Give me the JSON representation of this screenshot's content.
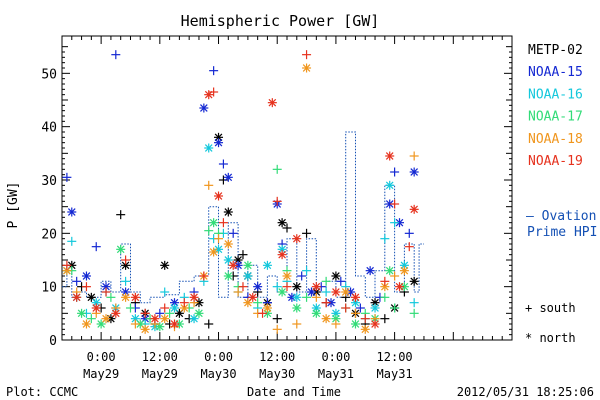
{
  "chart_data": {
    "type": "scatter",
    "title": "Hemispheric Power [GW]",
    "ylabel": "P [GW]",
    "xlabel": "Date and Time",
    "ylim": [
      0,
      57
    ],
    "xlim_hours": [
      -8,
      84
    ],
    "y_ticks": [
      0,
      10,
      20,
      30,
      40,
      50
    ],
    "x_ticks": [
      {
        "hour": 0,
        "line1": "0:00",
        "line2": "May29"
      },
      {
        "hour": 12,
        "line1": "12:00",
        "line2": "May29"
      },
      {
        "hour": 24,
        "line1": "0:00",
        "line2": "May30"
      },
      {
        "hour": 36,
        "line1": "12:00",
        "line2": "May30"
      },
      {
        "hour": 48,
        "line1": "0:00",
        "line2": "May31"
      },
      {
        "hour": 60,
        "line1": "12:00",
        "line2": "May31"
      }
    ],
    "series": [
      {
        "name": "METP-02",
        "color": "#000000",
        "points": [
          [
            -6,
            14
          ],
          [
            -4,
            10
          ],
          [
            -2,
            8
          ],
          [
            0,
            6
          ],
          [
            2,
            4
          ],
          [
            4,
            23.5
          ],
          [
            5,
            14
          ],
          [
            7,
            7
          ],
          [
            9,
            5
          ],
          [
            11,
            3
          ],
          [
            13,
            14
          ],
          [
            14,
            3
          ],
          [
            16,
            5
          ],
          [
            18,
            4
          ],
          [
            20,
            7
          ],
          [
            22,
            3
          ],
          [
            24,
            38
          ],
          [
            25,
            30
          ],
          [
            26,
            24
          ],
          [
            27,
            12
          ],
          [
            28,
            15
          ],
          [
            29,
            16
          ],
          [
            30,
            12
          ],
          [
            32,
            9
          ],
          [
            34,
            7
          ],
          [
            36,
            4
          ],
          [
            37,
            22
          ],
          [
            38,
            21
          ],
          [
            40,
            10
          ],
          [
            42,
            20
          ],
          [
            44,
            9
          ],
          [
            46,
            7
          ],
          [
            48,
            12
          ],
          [
            50,
            8
          ],
          [
            52,
            5
          ],
          [
            54,
            3
          ],
          [
            56,
            7
          ],
          [
            58,
            4
          ],
          [
            60,
            6
          ],
          [
            62,
            9
          ],
          [
            64,
            11
          ]
        ]
      },
      {
        "name": "NOAA-15",
        "color": "#1428d2",
        "points": [
          [
            -7,
            30.5
          ],
          [
            -6,
            24
          ],
          [
            -5,
            11
          ],
          [
            -3,
            12
          ],
          [
            -1,
            17.5
          ],
          [
            1,
            10
          ],
          [
            3,
            53.5
          ],
          [
            5,
            9
          ],
          [
            7,
            6
          ],
          [
            9,
            4
          ],
          [
            12,
            5
          ],
          [
            15,
            7
          ],
          [
            19,
            9
          ],
          [
            21,
            43.5
          ],
          [
            23,
            50.5
          ],
          [
            24,
            37
          ],
          [
            25,
            33
          ],
          [
            26,
            30.5
          ],
          [
            27,
            20
          ],
          [
            28,
            14
          ],
          [
            30,
            8
          ],
          [
            32,
            10
          ],
          [
            34,
            7
          ],
          [
            36,
            25.5
          ],
          [
            37,
            18
          ],
          [
            39,
            8
          ],
          [
            41,
            12
          ],
          [
            43,
            9
          ],
          [
            45,
            10
          ],
          [
            47,
            7
          ],
          [
            49,
            11
          ],
          [
            51,
            9
          ],
          [
            53,
            6
          ],
          [
            55,
            13
          ],
          [
            57,
            8
          ],
          [
            59,
            25.5
          ],
          [
            60,
            31.5
          ],
          [
            61,
            22
          ],
          [
            63,
            20
          ],
          [
            64,
            31.5
          ]
        ]
      },
      {
        "name": "NOAA-16",
        "color": "#14c8dc",
        "points": [
          [
            -7,
            13
          ],
          [
            -6,
            18.5
          ],
          [
            -5,
            8
          ],
          [
            -3,
            5
          ],
          [
            -1,
            7
          ],
          [
            1,
            9
          ],
          [
            3,
            6
          ],
          [
            5,
            11
          ],
          [
            7,
            4
          ],
          [
            9,
            3
          ],
          [
            11,
            2.5
          ],
          [
            13,
            9
          ],
          [
            15,
            6
          ],
          [
            17,
            8
          ],
          [
            19,
            4
          ],
          [
            21,
            11
          ],
          [
            22,
            36
          ],
          [
            23,
            19
          ],
          [
            24,
            17
          ],
          [
            25,
            20
          ],
          [
            26,
            15
          ],
          [
            28,
            9
          ],
          [
            30,
            12
          ],
          [
            32,
            6
          ],
          [
            34,
            14
          ],
          [
            36,
            10
          ],
          [
            37,
            17
          ],
          [
            38,
            11
          ],
          [
            40,
            8
          ],
          [
            42,
            13
          ],
          [
            44,
            6
          ],
          [
            46,
            9
          ],
          [
            48,
            5
          ],
          [
            50,
            10
          ],
          [
            52,
            7
          ],
          [
            54,
            4
          ],
          [
            56,
            6
          ],
          [
            58,
            19
          ],
          [
            59,
            29
          ],
          [
            60,
            22
          ],
          [
            62,
            14
          ],
          [
            64,
            7
          ]
        ]
      },
      {
        "name": "NOAA-17",
        "color": "#32dc78",
        "points": [
          [
            -6,
            13
          ],
          [
            -4,
            5
          ],
          [
            -2,
            4
          ],
          [
            0,
            3
          ],
          [
            2,
            8
          ],
          [
            4,
            17
          ],
          [
            6,
            6
          ],
          [
            8,
            3
          ],
          [
            10,
            4
          ],
          [
            12,
            2.5
          ],
          [
            14,
            5
          ],
          [
            16,
            3
          ],
          [
            18,
            6
          ],
          [
            20,
            5
          ],
          [
            22,
            20.5
          ],
          [
            23,
            22
          ],
          [
            24,
            20
          ],
          [
            26,
            12
          ],
          [
            28,
            10
          ],
          [
            30,
            14
          ],
          [
            32,
            7
          ],
          [
            34,
            5
          ],
          [
            36,
            32
          ],
          [
            37,
            9
          ],
          [
            38,
            13
          ],
          [
            40,
            6
          ],
          [
            42,
            8
          ],
          [
            44,
            5
          ],
          [
            46,
            11
          ],
          [
            48,
            4
          ],
          [
            50,
            6
          ],
          [
            52,
            3
          ],
          [
            54,
            5
          ],
          [
            56,
            4
          ],
          [
            58,
            8
          ],
          [
            59,
            13
          ],
          [
            60,
            6
          ],
          [
            62,
            10
          ],
          [
            64,
            5
          ]
        ]
      },
      {
        "name": "NOAA-18",
        "color": "#f0961e",
        "points": [
          [
            -7,
            13
          ],
          [
            -5,
            9
          ],
          [
            -3,
            3
          ],
          [
            -1,
            5
          ],
          [
            1,
            4
          ],
          [
            3,
            6
          ],
          [
            5,
            8
          ],
          [
            7,
            3
          ],
          [
            9,
            2
          ],
          [
            11,
            3
          ],
          [
            13,
            4
          ],
          [
            15,
            2.5
          ],
          [
            17,
            6
          ],
          [
            19,
            7
          ],
          [
            21,
            12
          ],
          [
            22,
            29
          ],
          [
            23,
            16.5
          ],
          [
            24,
            19
          ],
          [
            26,
            18
          ],
          [
            28,
            9
          ],
          [
            30,
            7
          ],
          [
            32,
            5
          ],
          [
            34,
            6
          ],
          [
            36,
            2
          ],
          [
            38,
            12
          ],
          [
            40,
            3
          ],
          [
            42,
            51
          ],
          [
            44,
            8
          ],
          [
            46,
            4
          ],
          [
            48,
            3
          ],
          [
            50,
            9
          ],
          [
            52,
            5
          ],
          [
            54,
            2
          ],
          [
            56,
            4
          ],
          [
            58,
            10
          ],
          [
            60,
            12
          ],
          [
            62,
            13
          ],
          [
            64,
            34.5
          ]
        ]
      },
      {
        "name": "NOAA-19",
        "color": "#e6321e",
        "points": [
          [
            -7,
            14
          ],
          [
            -5,
            8
          ],
          [
            -3,
            10
          ],
          [
            -1,
            6
          ],
          [
            1,
            9
          ],
          [
            3,
            5
          ],
          [
            5,
            15
          ],
          [
            7,
            8
          ],
          [
            9,
            5
          ],
          [
            11,
            4
          ],
          [
            13,
            6
          ],
          [
            15,
            3
          ],
          [
            17,
            7
          ],
          [
            19,
            8
          ],
          [
            21,
            12
          ],
          [
            22,
            46
          ],
          [
            23,
            46.5
          ],
          [
            24,
            27
          ],
          [
            25,
            22
          ],
          [
            27,
            14
          ],
          [
            29,
            10
          ],
          [
            31,
            8
          ],
          [
            33,
            5
          ],
          [
            35,
            44.5
          ],
          [
            36,
            26
          ],
          [
            37,
            16
          ],
          [
            38,
            10
          ],
          [
            40,
            19
          ],
          [
            42,
            53.5
          ],
          [
            44,
            10
          ],
          [
            46,
            7
          ],
          [
            48,
            9
          ],
          [
            50,
            6
          ],
          [
            52,
            8
          ],
          [
            54,
            4
          ],
          [
            56,
            3
          ],
          [
            58,
            11
          ],
          [
            59,
            34.5
          ],
          [
            60,
            25.5
          ],
          [
            61,
            10
          ],
          [
            63,
            17.5
          ],
          [
            64,
            24.5
          ]
        ]
      }
    ],
    "ovation": {
      "label_line1": "– Ovation",
      "label_line2": "Prime HPI",
      "color": "#1450b4",
      "segments": [
        [
          -8,
          10
        ],
        [
          -7,
          14
        ],
        [
          -6,
          8
        ],
        [
          -5,
          9
        ],
        [
          -3,
          8
        ],
        [
          0,
          11
        ],
        [
          2,
          9
        ],
        [
          4,
          18
        ],
        [
          6,
          9
        ],
        [
          8,
          7
        ],
        [
          10,
          8
        ],
        [
          13,
          8.5
        ],
        [
          16,
          11
        ],
        [
          19,
          12
        ],
        [
          22,
          25
        ],
        [
          24,
          8
        ],
        [
          26,
          22
        ],
        [
          28,
          8
        ],
        [
          30,
          14
        ],
        [
          32,
          8
        ],
        [
          34,
          12
        ],
        [
          36,
          9
        ],
        [
          38,
          19
        ],
        [
          40,
          9
        ],
        [
          42,
          19
        ],
        [
          44,
          9
        ],
        [
          46,
          11
        ],
        [
          48,
          8
        ],
        [
          50,
          39
        ],
        [
          52,
          12
        ],
        [
          54,
          8
        ],
        [
          56,
          13
        ],
        [
          58,
          29
        ],
        [
          60,
          9
        ],
        [
          62,
          18
        ],
        [
          64,
          9
        ],
        [
          65,
          18
        ]
      ]
    },
    "legend": {
      "position": "right",
      "entries": [
        "METP-02",
        "NOAA-15",
        "NOAA-16",
        "NOAA-17",
        "NOAA-18",
        "NOAA-19"
      ],
      "colors": [
        "#000000",
        "#1428d2",
        "#14c8dc",
        "#32dc78",
        "#f0961e",
        "#e6321e"
      ],
      "marker_south": "+ south",
      "marker_north": "* north"
    }
  },
  "footer": {
    "plot_credit": "Plot: CCMC",
    "timestamp": "2012/05/31 18:25:06"
  }
}
